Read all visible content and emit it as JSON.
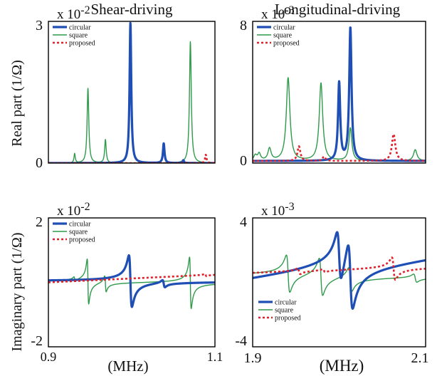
{
  "colors": {
    "circular": "#1f4fb4",
    "square": "#2e9a4a",
    "proposed": "#e0202a",
    "frame": "#000000"
  },
  "column_titles": {
    "left": "Shear-driving",
    "right": "Longitudinal-driving"
  },
  "row_labels": {
    "top": "Real part  (1/Ω)",
    "bottom": "Imaginary part  (1/Ω)"
  },
  "xlabels": {
    "left": "(MHz)",
    "right": "(MHz)"
  },
  "chart_data": [
    {
      "id": "shear-real",
      "type": "line",
      "ymax_label": "3",
      "ymin_label": "0",
      "scale_base": "x 10",
      "scale_exp": "-2",
      "xlim": [
        0.9,
        1.1
      ],
      "ylim": [
        0,
        3
      ],
      "legend": {
        "position": "top-left",
        "entries": [
          "circular",
          "square",
          "proposed"
        ]
      },
      "series": [
        {
          "name": "circular",
          "baseline": 0,
          "components": [
            {
              "kind": "lorentz",
              "x0": 0.9985,
              "w": 0.0012,
              "a": 3.0
            },
            {
              "kind": "lorentz",
              "x0": 1.0385,
              "w": 0.0011,
              "a": 0.42
            },
            {
              "kind": "lorentz",
              "x0": 1.062,
              "w": 0.001,
              "a": 0.06
            }
          ]
        },
        {
          "name": "square",
          "baseline": 0,
          "components": [
            {
              "kind": "lorentz",
              "x0": 0.9315,
              "w": 0.0009,
              "a": 0.2
            },
            {
              "kind": "lorentz",
              "x0": 0.9475,
              "w": 0.0012,
              "a": 1.6
            },
            {
              "kind": "lorentz",
              "x0": 0.9685,
              "w": 0.0011,
              "a": 0.5
            },
            {
              "kind": "lorentz",
              "x0": 1.0705,
              "w": 0.0013,
              "a": 2.6
            }
          ]
        },
        {
          "name": "proposed",
          "baseline": 0,
          "components": [
            {
              "kind": "lorentz",
              "x0": 1.089,
              "w": 0.0011,
              "a": 0.18
            }
          ]
        }
      ]
    },
    {
      "id": "longitudinal-real",
      "type": "line",
      "ymax_label": "8",
      "ymin_label": "0",
      "scale_base": "x 10",
      "scale_exp": "-3",
      "xlim": [
        1.9,
        2.1
      ],
      "ylim": [
        0,
        8
      ],
      "legend": {
        "position": "top-left",
        "entries": [
          "circular",
          "square",
          "proposed"
        ]
      },
      "series": [
        {
          "name": "circular",
          "baseline": 0,
          "components": [
            {
              "kind": "lorentz",
              "x0": 2.0,
              "w": 0.0015,
              "a": 4.5
            },
            {
              "kind": "lorentz",
              "x0": 2.013,
              "w": 0.0016,
              "a": 7.7
            }
          ]
        },
        {
          "name": "square",
          "baseline": 0,
          "components": [
            {
              "kind": "lorentz",
              "x0": 1.903,
              "w": 0.002,
              "a": 0.3
            },
            {
              "kind": "lorentz",
              "x0": 1.9075,
              "w": 0.002,
              "a": 0.4
            },
            {
              "kind": "lorentz",
              "x0": 1.9195,
              "w": 0.0022,
              "a": 0.7
            },
            {
              "kind": "lorentz",
              "x0": 1.941,
              "w": 0.0025,
              "a": 4.8
            },
            {
              "kind": "lorentz",
              "x0": 1.979,
              "w": 0.0024,
              "a": 4.5
            },
            {
              "kind": "lorentz",
              "x0": 2.013,
              "w": 0.002,
              "a": 1.9
            },
            {
              "kind": "lorentz",
              "x0": 2.088,
              "w": 0.0024,
              "a": 0.65
            }
          ]
        },
        {
          "name": "proposed",
          "baseline": 0,
          "components": [
            {
              "kind": "lorentz",
              "x0": 1.9535,
              "w": 0.002,
              "a": 0.85
            },
            {
              "kind": "lorentz",
              "x0": 1.9825,
              "w": 0.002,
              "a": 0.25
            },
            {
              "kind": "lorentz",
              "x0": 2.063,
              "w": 0.0024,
              "a": 1.55
            }
          ]
        }
      ]
    },
    {
      "id": "shear-imag",
      "type": "line",
      "ymax_label": "2",
      "ymin_label": "-2",
      "scale_base": "x 10",
      "scale_exp": "-2",
      "xlim": [
        0.9,
        1.1
      ],
      "ylim": [
        -2,
        2
      ],
      "legend": {
        "position": "top-left",
        "entries": [
          "circular",
          "square",
          "proposed"
        ]
      },
      "series": [
        {
          "name": "circular",
          "baseline": 0.03,
          "components": [
            {
              "kind": "disp",
              "x0": 0.9985,
              "w": 0.0018,
              "a": 3.2
            },
            {
              "kind": "disp",
              "x0": 1.0385,
              "w": 0.0015,
              "a": 0.45
            }
          ]
        },
        {
          "name": "square",
          "baseline": 0.0,
          "components": [
            {
              "kind": "disp",
              "x0": 0.9315,
              "w": 0.0008,
              "a": 0.3
            },
            {
              "kind": "disp",
              "x0": 0.9475,
              "w": 0.0009,
              "a": 2.8
            },
            {
              "kind": "disp",
              "x0": 0.9685,
              "w": 0.0009,
              "a": 1.0
            },
            {
              "kind": "disp",
              "x0": 1.0705,
              "w": 0.001,
              "a": 3.2
            }
          ]
        },
        {
          "name": "proposed",
          "baseline": 0.0,
          "slope": 1.2,
          "components": [
            {
              "kind": "disp",
              "x0": 1.089,
              "w": 0.001,
              "a": 0.15
            }
          ]
        }
      ]
    },
    {
      "id": "longitudinal-imag",
      "type": "line",
      "ymax_label": "4",
      "ymin_label": "-4",
      "scale_base": "x 10",
      "scale_exp": "-3",
      "xlim": [
        1.9,
        2.1
      ],
      "ylim": [
        -4.6,
        4
      ],
      "xticks": [
        "1.9",
        "2.1"
      ],
      "legend": {
        "position": "bottom-left",
        "entries": [
          "circular",
          "square",
          "proposed"
        ]
      },
      "series": [
        {
          "name": "circular",
          "baseline": -0.2,
          "slope": 8,
          "components": [
            {
              "kind": "disp",
              "x0": 2.0,
              "w": 0.0025,
              "a": 6.8
            },
            {
              "kind": "disp",
              "x0": 2.013,
              "w": 0.0027,
              "a": 9.0
            }
          ]
        },
        {
          "name": "square",
          "baseline": 0.1,
          "components": [
            {
              "kind": "disp",
              "x0": 1.941,
              "w": 0.002,
              "a": 5.0
            },
            {
              "kind": "disp",
              "x0": 1.979,
              "w": 0.002,
              "a": 5.0
            },
            {
              "kind": "disp",
              "x0": 2.013,
              "w": 0.0019,
              "a": 3.2
            },
            {
              "kind": "disp",
              "x0": 2.088,
              "w": 0.0019,
              "a": 1.1
            }
          ]
        },
        {
          "name": "proposed",
          "baseline": 0.3,
          "slope": 2,
          "components": [
            {
              "kind": "disp",
              "x0": 1.9535,
              "w": 0.0016,
              "a": 0.8
            },
            {
              "kind": "disp",
              "x0": 1.9825,
              "w": 0.0016,
              "a": 0.4
            },
            {
              "kind": "disp",
              "x0": 2.063,
              "w": 0.002,
              "a": 3.0
            }
          ]
        }
      ]
    },
    {
      "id": "shear-imag-xticks",
      "type": "axis",
      "xticks": [
        "0.9",
        "1.1"
      ]
    }
  ]
}
